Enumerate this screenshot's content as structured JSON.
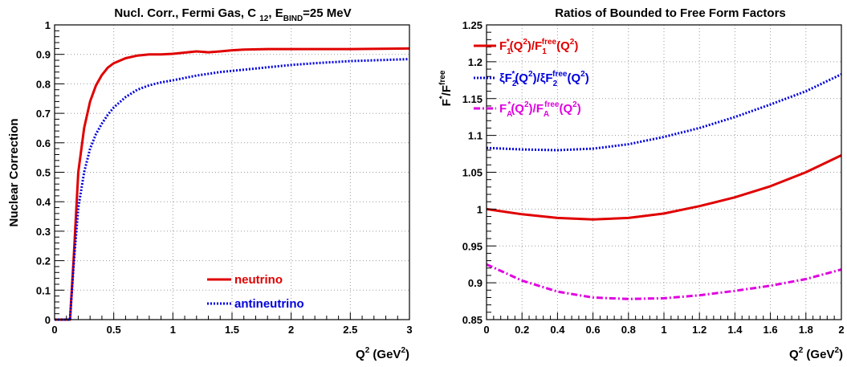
{
  "chart_data": [
    {
      "type": "line",
      "title_parts": [
        "Nucl. Corr.,  Fermi Gas, C ",
        "12",
        ", E",
        "BIND",
        "=25 MeV"
      ],
      "ylabel": "Nuclear Correction",
      "xlabel_parts": [
        "Q",
        "2",
        " (GeV",
        "2",
        ")"
      ],
      "xlim": [
        0,
        3
      ],
      "ylim": [
        0,
        1
      ],
      "xticks": [
        {
          "v": 0,
          "label": "0"
        },
        {
          "v": 0.5,
          "label": "0.5"
        },
        {
          "v": 1,
          "label": "1"
        },
        {
          "v": 1.5,
          "label": "1.5"
        },
        {
          "v": 2,
          "label": "2"
        },
        {
          "v": 2.5,
          "label": "2.5"
        },
        {
          "v": 3,
          "label": "3"
        }
      ],
      "yticks": [
        {
          "v": 0,
          "label": "0"
        },
        {
          "v": 0.1,
          "label": "0.1"
        },
        {
          "v": 0.2,
          "label": "0.2"
        },
        {
          "v": 0.3,
          "label": "0.3"
        },
        {
          "v": 0.4,
          "label": "0.4"
        },
        {
          "v": 0.5,
          "label": "0.5"
        },
        {
          "v": 0.6,
          "label": "0.6"
        },
        {
          "v": 0.7,
          "label": "0.7"
        },
        {
          "v": 0.8,
          "label": "0.8"
        },
        {
          "v": 0.9,
          "label": "0.9"
        },
        {
          "v": 1,
          "label": "1"
        }
      ],
      "grid": true,
      "legend_position": "bottom-center",
      "series": [
        {
          "name": "neutrino",
          "color": "#e00000",
          "style": "solid",
          "x": [
            0,
            0.13,
            0.16,
            0.2,
            0.25,
            0.3,
            0.35,
            0.4,
            0.45,
            0.5,
            0.6,
            0.7,
            0.8,
            0.9,
            1.0,
            1.1,
            1.2,
            1.3,
            1.4,
            1.5,
            1.6,
            1.8,
            2.0,
            2.2,
            2.5,
            3.0
          ],
          "y": [
            0,
            0,
            0.2,
            0.5,
            0.65,
            0.74,
            0.795,
            0.83,
            0.855,
            0.87,
            0.887,
            0.896,
            0.9,
            0.9,
            0.902,
            0.906,
            0.91,
            0.907,
            0.91,
            0.914,
            0.916,
            0.918,
            0.918,
            0.918,
            0.918,
            0.92
          ]
        },
        {
          "name": "antineutrino",
          "color": "#0000dd",
          "style": "dotted",
          "x": [
            0,
            0.13,
            0.16,
            0.2,
            0.25,
            0.3,
            0.35,
            0.4,
            0.45,
            0.5,
            0.6,
            0.7,
            0.8,
            0.9,
            1.0,
            1.2,
            1.4,
            1.6,
            1.8,
            2.0,
            2.2,
            2.5,
            3.0
          ],
          "y": [
            0,
            0,
            0.18,
            0.38,
            0.5,
            0.58,
            0.63,
            0.665,
            0.695,
            0.72,
            0.755,
            0.78,
            0.795,
            0.805,
            0.812,
            0.828,
            0.84,
            0.848,
            0.856,
            0.864,
            0.87,
            0.877,
            0.884
          ]
        }
      ]
    },
    {
      "type": "line",
      "title": "Ratios of Bounded to Free Form Factors",
      "ylabel_parts": [
        "F",
        "*",
        "/F",
        "free"
      ],
      "xlabel_parts": [
        "Q",
        "2",
        " (GeV",
        "2",
        ")"
      ],
      "xlim": [
        0,
        2
      ],
      "ylim": [
        0.85,
        1.25
      ],
      "xticks": [
        {
          "v": 0,
          "label": "0"
        },
        {
          "v": 0.2,
          "label": "0.2"
        },
        {
          "v": 0.4,
          "label": "0.4"
        },
        {
          "v": 0.6,
          "label": "0.6"
        },
        {
          "v": 0.8,
          "label": "0.8"
        },
        {
          "v": 1.0,
          "label": "1"
        },
        {
          "v": 1.2,
          "label": "1.2"
        },
        {
          "v": 1.4,
          "label": "1.4"
        },
        {
          "v": 1.6,
          "label": "1.6"
        },
        {
          "v": 1.8,
          "label": "1.8"
        },
        {
          "v": 2.0,
          "label": "2"
        }
      ],
      "yticks": [
        {
          "v": 0.85,
          "label": "0.85"
        },
        {
          "v": 0.9,
          "label": "0.9"
        },
        {
          "v": 0.95,
          "label": "0.95"
        },
        {
          "v": 1.0,
          "label": "1"
        },
        {
          "v": 1.05,
          "label": "1.05"
        },
        {
          "v": 1.1,
          "label": "1.1"
        },
        {
          "v": 1.15,
          "label": "1.15"
        },
        {
          "v": 1.2,
          "label": "1.2"
        },
        {
          "v": 1.25,
          "label": "1.25"
        }
      ],
      "grid": true,
      "legend_position": "top-left",
      "series": [
        {
          "legend_parts": [
            "F",
            "1",
            "*",
            "(Q",
            "2",
            ")/F",
            "1",
            "free",
            "(Q",
            "2",
            ")"
          ],
          "color": "#e00000",
          "style": "solid",
          "x": [
            0,
            0.2,
            0.4,
            0.6,
            0.8,
            1.0,
            1.2,
            1.4,
            1.6,
            1.8,
            2.0
          ],
          "y": [
            1.0,
            0.993,
            0.988,
            0.986,
            0.988,
            0.994,
            1.004,
            1.016,
            1.031,
            1.05,
            1.073
          ]
        },
        {
          "legend_parts": [
            "ξF",
            "2",
            "*",
            "(Q",
            "2",
            ")/ξF",
            "2",
            "free",
            "(Q",
            "2",
            ")"
          ],
          "color": "#0000dd",
          "style": "dotted",
          "x": [
            0,
            0.2,
            0.4,
            0.6,
            0.8,
            1.0,
            1.2,
            1.4,
            1.6,
            1.8,
            2.0
          ],
          "y": [
            1.083,
            1.081,
            1.08,
            1.082,
            1.088,
            1.098,
            1.11,
            1.125,
            1.142,
            1.16,
            1.183
          ]
        },
        {
          "legend_parts": [
            "F",
            "A",
            "*",
            "(Q",
            "2",
            ")/F",
            "A",
            "free",
            "(Q",
            "2",
            ")"
          ],
          "color": "#e000e0",
          "style": "dashdot",
          "x": [
            0,
            0.2,
            0.4,
            0.6,
            0.8,
            1.0,
            1.2,
            1.4,
            1.6,
            1.8,
            2.0
          ],
          "y": [
            0.925,
            0.903,
            0.888,
            0.88,
            0.878,
            0.879,
            0.883,
            0.889,
            0.896,
            0.905,
            0.918
          ]
        }
      ]
    }
  ]
}
